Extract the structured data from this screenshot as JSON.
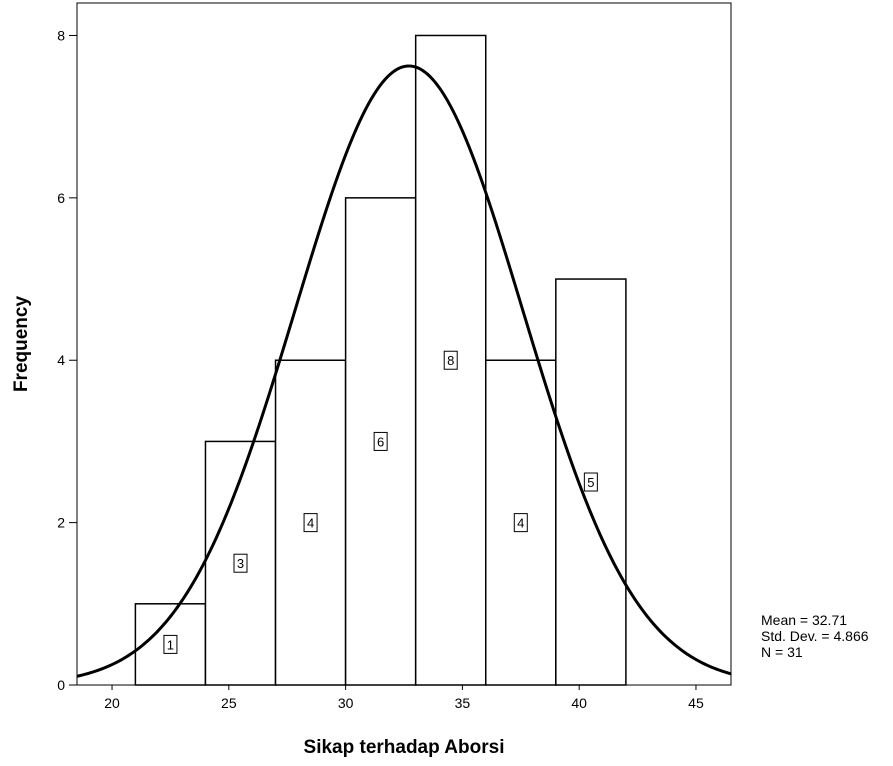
{
  "chart_data": {
    "type": "bar",
    "subtype": "histogram",
    "xlabel": "Sikap terhadap Aborsi",
    "ylabel": "Frequency",
    "xlim": [
      18.5,
      46.5
    ],
    "ylim": [
      0,
      8.4
    ],
    "x_ticks": [
      20,
      25,
      30,
      35,
      40,
      45
    ],
    "y_ticks": [
      0,
      2,
      4,
      6,
      8
    ],
    "bins": [
      {
        "start": 21,
        "end": 24,
        "count": 1,
        "label": "1"
      },
      {
        "start": 24,
        "end": 27,
        "count": 3,
        "label": "3"
      },
      {
        "start": 27,
        "end": 30,
        "count": 4,
        "label": "4"
      },
      {
        "start": 30,
        "end": 33,
        "count": 6,
        "label": "6"
      },
      {
        "start": 33,
        "end": 36,
        "count": 8,
        "label": "8"
      },
      {
        "start": 36,
        "end": 39,
        "count": 4,
        "label": "4"
      },
      {
        "start": 39,
        "end": 42,
        "count": 5,
        "label": "5"
      }
    ],
    "normal_curve": {
      "mean": 32.71,
      "sd": 4.866,
      "n": 31,
      "bin_width": 3
    },
    "grid": false,
    "legend": "none"
  },
  "stats": {
    "mean": "Mean = 32.71",
    "std_dev": "Std. Dev. = 4.866",
    "n": "N = 31"
  }
}
